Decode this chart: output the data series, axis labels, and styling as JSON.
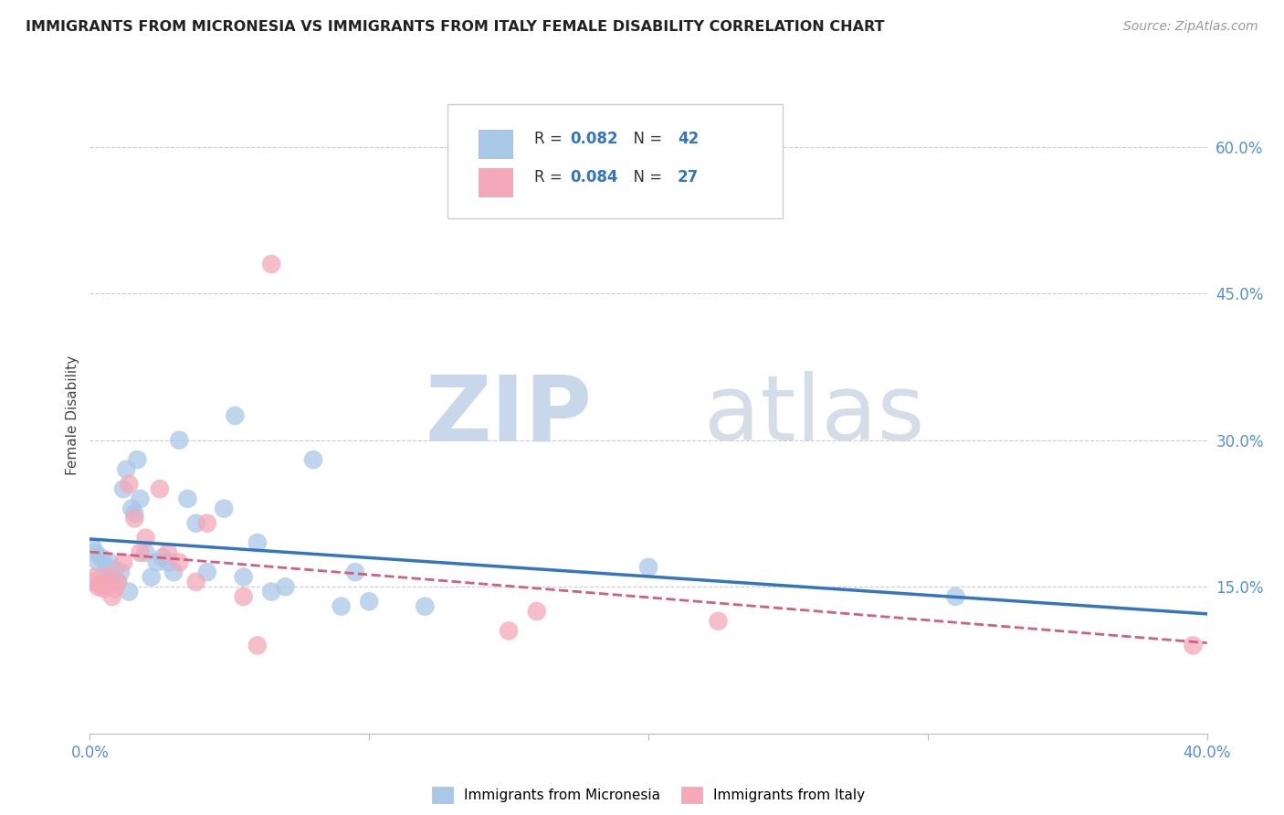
{
  "title": "IMMIGRANTS FROM MICRONESIA VS IMMIGRANTS FROM ITALY FEMALE DISABILITY CORRELATION CHART",
  "source": "Source: ZipAtlas.com",
  "ylabel": "Female Disability",
  "right_yticks": [
    "60.0%",
    "45.0%",
    "30.0%",
    "15.0%"
  ],
  "right_ytick_vals": [
    0.6,
    0.45,
    0.3,
    0.15
  ],
  "micronesia_color": "#a8c8e8",
  "italy_color": "#f4a8b8",
  "micronesia_line_color": "#3575c0",
  "italy_line_color": "#d06080",
  "micronesia_x": [
    0.001,
    0.002,
    0.003,
    0.004,
    0.005,
    0.006,
    0.007,
    0.007,
    0.008,
    0.009,
    0.01,
    0.011,
    0.012,
    0.013,
    0.014,
    0.015,
    0.016,
    0.017,
    0.018,
    0.02,
    0.022,
    0.024,
    0.026,
    0.028,
    0.03,
    0.032,
    0.035,
    0.038,
    0.042,
    0.048,
    0.052,
    0.055,
    0.06,
    0.065,
    0.07,
    0.08,
    0.09,
    0.095,
    0.1,
    0.12,
    0.2,
    0.31
  ],
  "micronesia_y": [
    0.19,
    0.185,
    0.175,
    0.18,
    0.16,
    0.17,
    0.175,
    0.165,
    0.16,
    0.168,
    0.155,
    0.165,
    0.25,
    0.27,
    0.145,
    0.23,
    0.225,
    0.28,
    0.24,
    0.185,
    0.16,
    0.175,
    0.18,
    0.175,
    0.165,
    0.3,
    0.24,
    0.215,
    0.165,
    0.23,
    0.325,
    0.16,
    0.195,
    0.145,
    0.15,
    0.28,
    0.13,
    0.165,
    0.135,
    0.13,
    0.17,
    0.14
  ],
  "italy_x": [
    0.001,
    0.002,
    0.003,
    0.004,
    0.005,
    0.006,
    0.007,
    0.008,
    0.009,
    0.01,
    0.012,
    0.014,
    0.016,
    0.018,
    0.02,
    0.025,
    0.028,
    0.032,
    0.038,
    0.042,
    0.055,
    0.06,
    0.065,
    0.15,
    0.16,
    0.225,
    0.395
  ],
  "italy_y": [
    0.155,
    0.16,
    0.15,
    0.152,
    0.148,
    0.155,
    0.162,
    0.14,
    0.148,
    0.155,
    0.175,
    0.255,
    0.22,
    0.185,
    0.2,
    0.25,
    0.185,
    0.175,
    0.155,
    0.215,
    0.14,
    0.09,
    0.48,
    0.105,
    0.125,
    0.115,
    0.09
  ],
  "xmin": 0.0,
  "xmax": 0.4,
  "ymin": 0.0,
  "ymax": 0.65,
  "xtick_positions": [
    0.0,
    0.1,
    0.2,
    0.3,
    0.4
  ],
  "background_color": "#ffffff"
}
